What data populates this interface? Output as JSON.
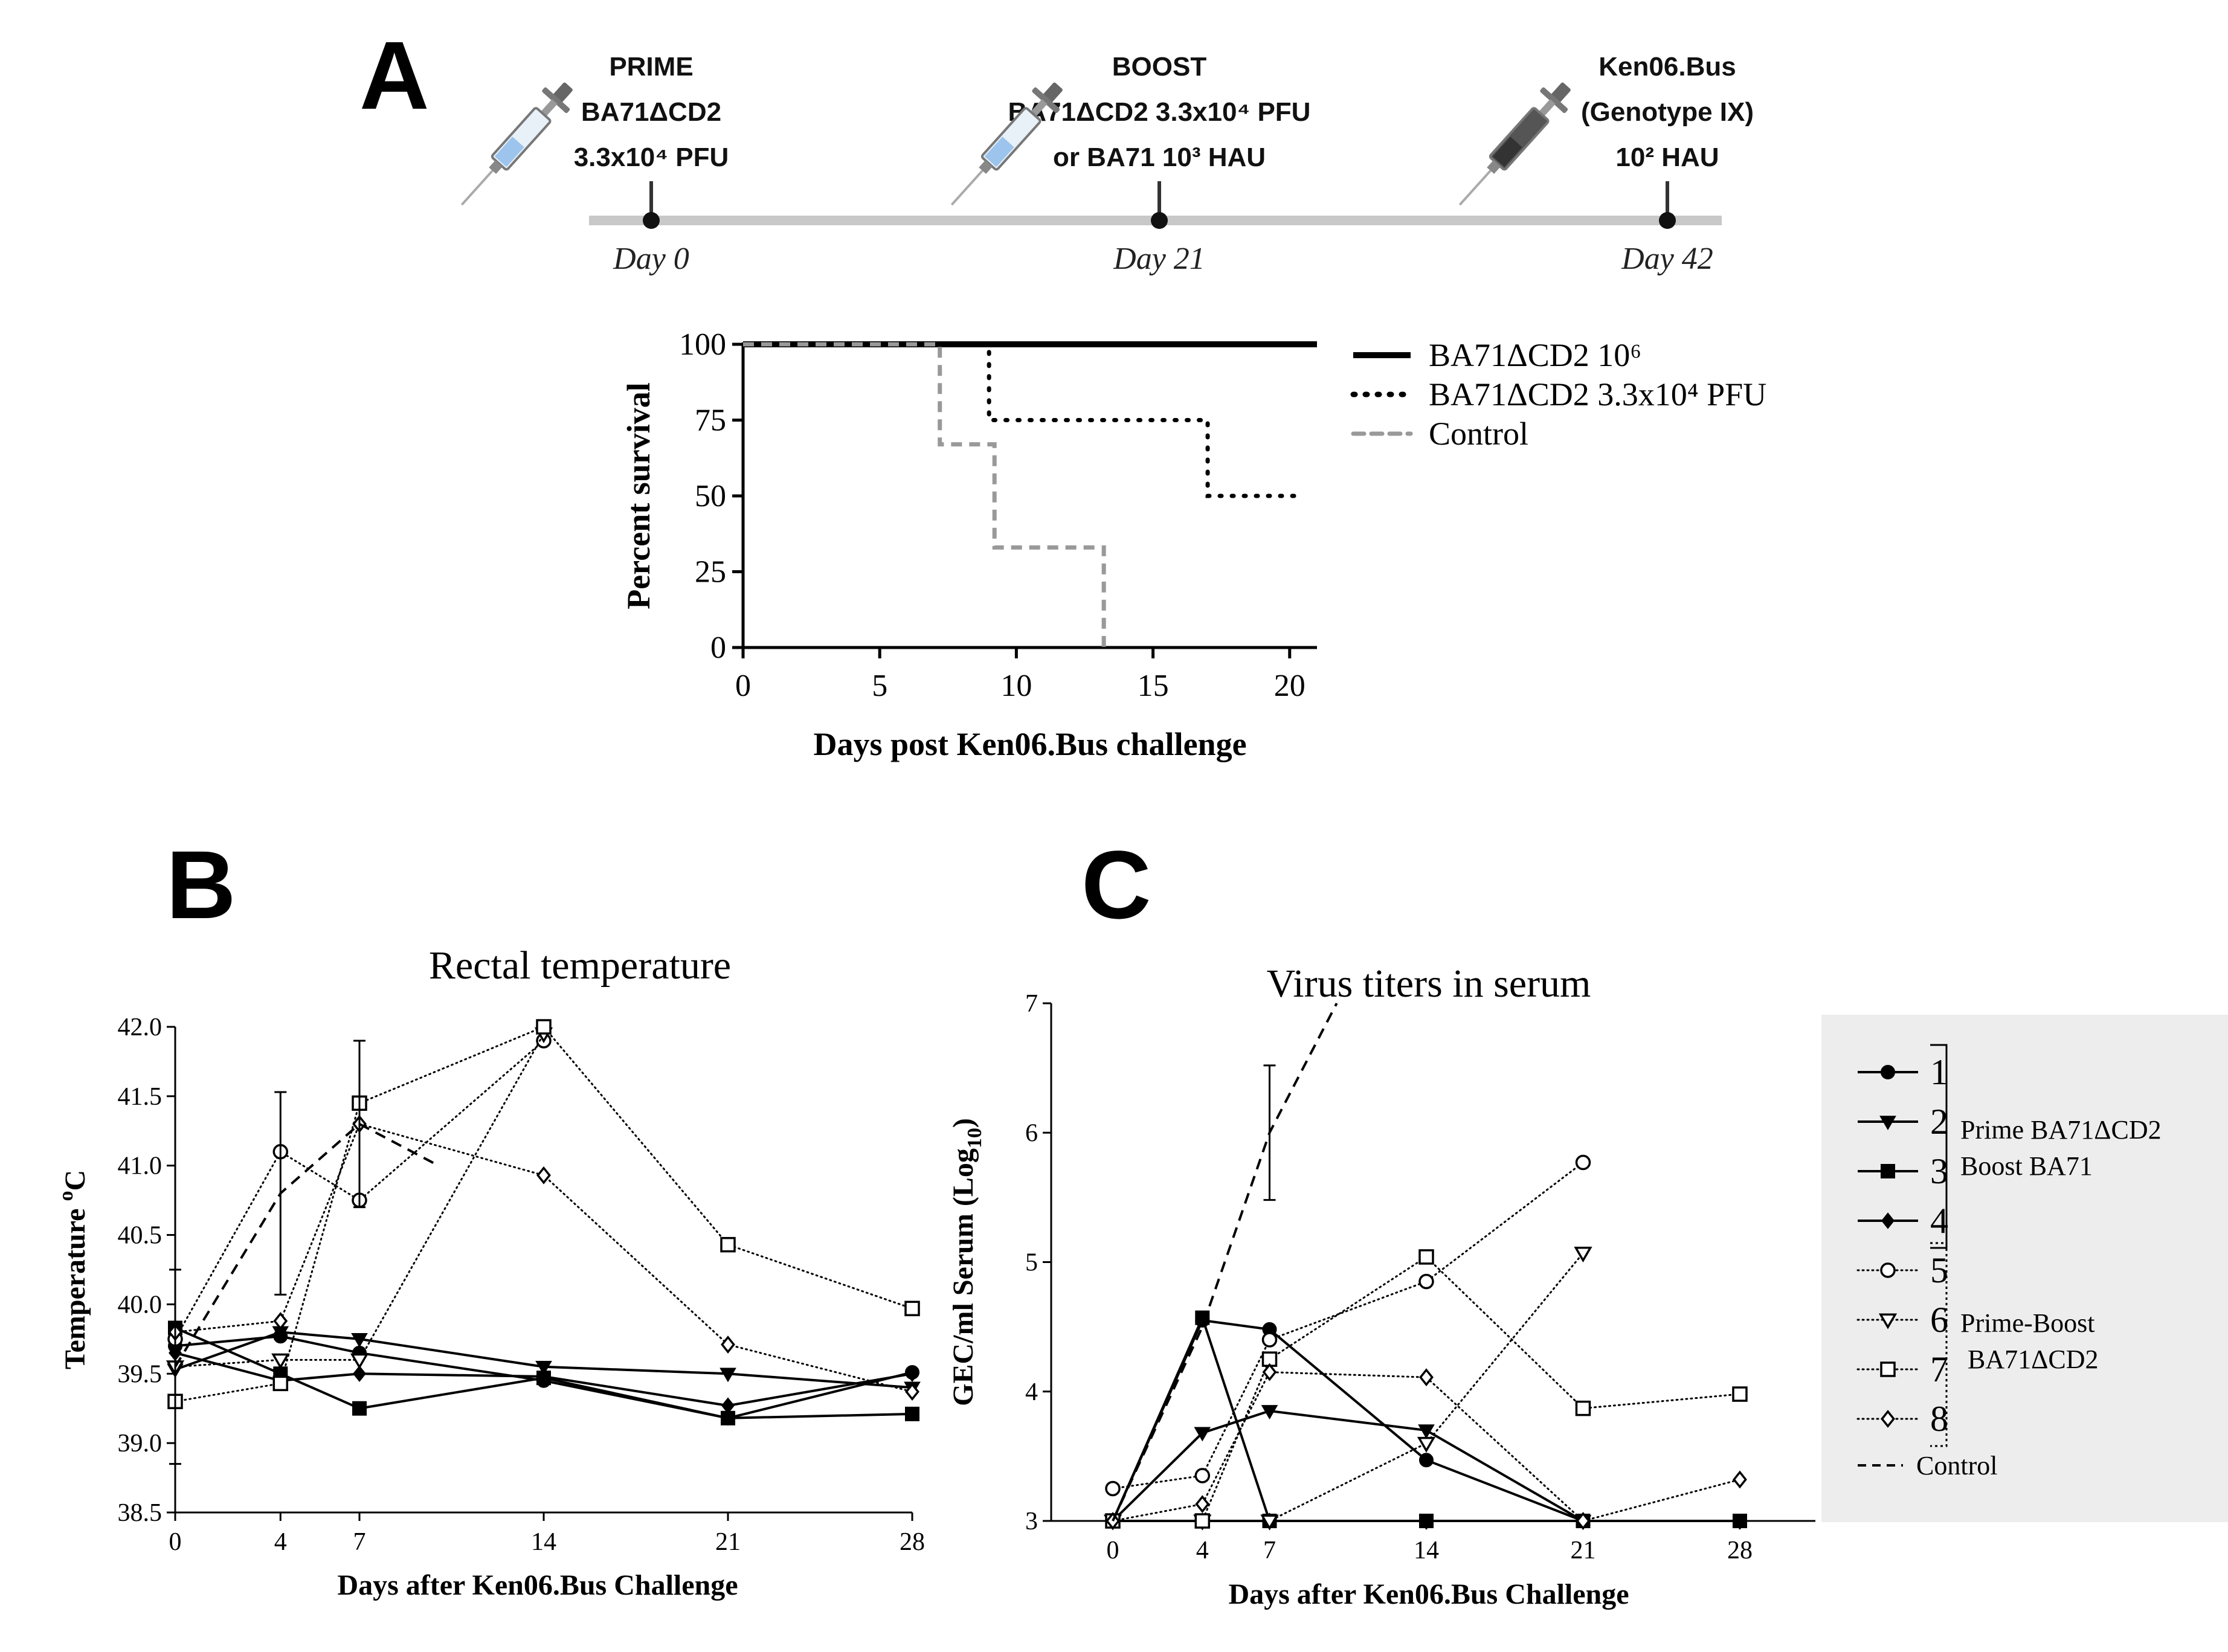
{
  "panels": {
    "a": "A",
    "b": "B",
    "c": "C"
  },
  "timeline": {
    "events": [
      {
        "day": 0,
        "label_lines": [
          "PRIME",
          "BA71ΔCD2",
          "3.3x10⁴ PFU"
        ],
        "day_label": "Day 0",
        "syringe": "syringe-light"
      },
      {
        "day": 21,
        "label_lines": [
          "BOOST",
          "BA71ΔCD2 3.3x10⁴ PFU",
          "or BA71 10³ HAU"
        ],
        "day_label": "Day 21",
        "syringe": "syringe-light"
      },
      {
        "day": 42,
        "label_lines": [
          "Ken06.Bus",
          "(Genotype IX)",
          "10² HAU"
        ],
        "day_label": "Day 42",
        "syringe": "syringe-dark"
      }
    ],
    "colors": {
      "line": "#c8c8c8",
      "dot": "#111111"
    }
  },
  "survival_legend": [
    {
      "label": "BA71ΔCD2 10⁶",
      "style": "solid"
    },
    {
      "label": "BA71ΔCD2 3.3x10⁴ PFU",
      "style": "dotted"
    },
    {
      "label": "Control",
      "style": "dashed-gray"
    }
  ],
  "temp_axis_label": "Temperature °C",
  "titer_legend": {
    "group1_label_lines": [
      "Prime BA71ΔCD2",
      "Boost BA71"
    ],
    "group2_label_lines": [
      "Prime-Boost",
      "BA71ΔCD2"
    ],
    "entries": [
      {
        "num": "1",
        "marker": "circle-filled",
        "line": "solid"
      },
      {
        "num": "2",
        "marker": "triangle-down-filled",
        "line": "solid"
      },
      {
        "num": "3",
        "marker": "square-filled",
        "line": "solid"
      },
      {
        "num": "4",
        "marker": "diamond-filled",
        "line": "solid"
      },
      {
        "num": "5",
        "marker": "circle-open",
        "line": "dotted"
      },
      {
        "num": "6",
        "marker": "triangle-down-open",
        "line": "dotted"
      },
      {
        "num": "7",
        "marker": "square-open",
        "line": "dotted"
      },
      {
        "num": "8",
        "marker": "diamond-open",
        "line": "dotted"
      }
    ],
    "control_label": "Control",
    "background": "#ededed"
  },
  "chart_data": [
    {
      "id": "survival",
      "type": "line",
      "subtype": "kaplan-meier",
      "title": "",
      "xlabel": "Days post Ken06.Bus challenge",
      "ylabel": "Percent survival",
      "xlim": [
        0,
        21
      ],
      "ylim": [
        0,
        100
      ],
      "xticks": [
        0,
        5,
        10,
        15,
        20
      ],
      "yticks": [
        0,
        25,
        50,
        75,
        100
      ],
      "grid": false,
      "series": [
        {
          "name": "BA71ΔCD2 10⁶",
          "style": "solid",
          "x": [
            0,
            21
          ],
          "y": [
            100,
            100
          ]
        },
        {
          "name": "BA71ΔCD2 3.3x10⁴ PFU",
          "style": "dotted",
          "x": [
            0,
            9,
            9,
            17,
            17,
            20.5
          ],
          "y": [
            100,
            100,
            75,
            75,
            50,
            50
          ]
        },
        {
          "name": "Control",
          "style": "dashed",
          "color": "#999999",
          "x": [
            0,
            7.2,
            7.2,
            9.2,
            9.2,
            13.2,
            13.2
          ],
          "y": [
            100,
            100,
            67,
            67,
            33,
            33,
            0
          ]
        }
      ]
    },
    {
      "id": "temperature",
      "type": "line",
      "title": "Rectal temperature",
      "xlabel": "Days after Ken06.Bus Challenge",
      "ylabel": "Temperature °C",
      "x": [
        0,
        4,
        7,
        14,
        21,
        28
      ],
      "xlim": [
        0,
        28
      ],
      "ylim": [
        38.5,
        42.0
      ],
      "yticks": [
        "38.5",
        "39.0",
        "39.5",
        "40.0",
        "40.5",
        "41.0",
        "41.5",
        "42.0"
      ],
      "xticks": [
        "0",
        "4",
        "7",
        "14",
        "21",
        "28"
      ],
      "series": [
        {
          "name": "1",
          "style": "solid",
          "marker": "circle-filled",
          "values": [
            39.7,
            39.77,
            39.65,
            39.45,
            39.18,
            39.51
          ]
        },
        {
          "name": "2",
          "style": "solid",
          "marker": "triangle-down-filled",
          "values": [
            39.53,
            39.8,
            39.75,
            39.55,
            39.5,
            39.4
          ]
        },
        {
          "name": "3",
          "style": "solid",
          "marker": "square-filled",
          "values": [
            39.83,
            39.5,
            39.25,
            39.47,
            39.18,
            39.21
          ]
        },
        {
          "name": "4",
          "style": "solid",
          "marker": "diamond-filled",
          "values": [
            39.65,
            39.45,
            39.5,
            39.48,
            39.27,
            39.5
          ]
        },
        {
          "name": "5",
          "style": "dotted",
          "marker": "circle-open",
          "values": [
            39.75,
            41.1,
            40.75,
            41.9,
            null,
            null
          ]
        },
        {
          "name": "6",
          "style": "dotted",
          "marker": "triangle-down-open",
          "values": [
            39.55,
            39.6,
            39.6,
            41.95,
            null,
            null
          ]
        },
        {
          "name": "7",
          "style": "dotted",
          "marker": "square-open",
          "values": [
            39.3,
            39.43,
            41.45,
            42.0,
            40.43,
            39.97
          ]
        },
        {
          "name": "8",
          "style": "dotted",
          "marker": "diamond-open",
          "values": [
            39.8,
            39.88,
            41.3,
            40.93,
            39.71,
            39.37
          ]
        },
        {
          "name": "Control",
          "style": "dashed",
          "x": [
            0,
            4,
            7,
            10
          ],
          "values": [
            39.55,
            40.8,
            41.3,
            41.0
          ],
          "error": [
            0.7,
            0.73,
            0.6,
            0
          ]
        }
      ]
    },
    {
      "id": "titers",
      "type": "line",
      "title": "Virus titers in serum",
      "xlabel": "Days after Ken06.Bus Challenge",
      "ylabel": "GEC/ml Serum (Log10)",
      "x": [
        0,
        4,
        7,
        14,
        21,
        28
      ],
      "xlim": [
        -3,
        31
      ],
      "ylim": [
        3,
        7
      ],
      "yticks": [
        "3",
        "4",
        "5",
        "6",
        "7"
      ],
      "xticks": [
        "0",
        "4",
        "7",
        "14",
        "21",
        "28"
      ],
      "series": [
        {
          "name": "1",
          "style": "solid",
          "marker": "circle-filled",
          "values": [
            3.0,
            4.55,
            4.48,
            3.47,
            3.0,
            null
          ]
        },
        {
          "name": "2",
          "style": "solid",
          "marker": "triangle-down-filled",
          "values": [
            3.0,
            3.68,
            3.85,
            3.7,
            3.0,
            null
          ]
        },
        {
          "name": "3",
          "style": "solid",
          "marker": "square-filled",
          "values": [
            3.0,
            4.57,
            3.0,
            3.0,
            3.0,
            3.0
          ]
        },
        {
          "name": "4",
          "style": "solid",
          "marker": "diamond-filled",
          "values": [
            3.0,
            3.0,
            3.0,
            null,
            null,
            null
          ]
        },
        {
          "name": "5",
          "style": "dotted",
          "marker": "circle-open",
          "values": [
            3.25,
            3.35,
            4.4,
            4.85,
            5.77,
            null
          ]
        },
        {
          "name": "6",
          "style": "dotted",
          "marker": "triangle-down-open",
          "values": [
            3.0,
            3.0,
            3.0,
            3.6,
            5.07,
            null
          ]
        },
        {
          "name": "7",
          "style": "dotted",
          "marker": "square-open",
          "values": [
            3.0,
            3.0,
            4.25,
            5.04,
            3.87,
            3.98
          ]
        },
        {
          "name": "8",
          "style": "dotted",
          "marker": "diamond-open",
          "values": [
            3.0,
            3.13,
            4.15,
            4.11,
            3.0,
            3.32
          ]
        },
        {
          "name": "Control",
          "style": "dashed",
          "x": [
            0,
            4,
            7,
            10
          ],
          "values": [
            3.0,
            4.5,
            6.0,
            7.0
          ],
          "error": [
            0,
            0,
            0.52,
            0
          ]
        }
      ]
    }
  ]
}
